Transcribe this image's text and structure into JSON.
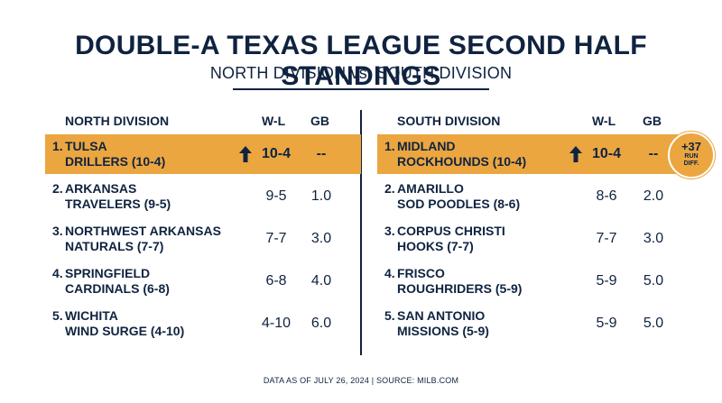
{
  "title": "DOUBLE-A TEXAS LEAGUE SECOND HALF STANDINGS",
  "subtitle": "NORTH DIVISION vs. SOUTH DIVISION",
  "accent_color": "#eba640",
  "text_color": "#0f2340",
  "north": {
    "header": {
      "division": "NORTH DIVISION",
      "wl": "W-L",
      "gb": "GB"
    },
    "rows": [
      {
        "rank": "1.",
        "line1": "TULSA",
        "line2": "DRILLERS (10-4)",
        "wl": "10-4",
        "gb": "--",
        "leader": true
      },
      {
        "rank": "2.",
        "line1": "ARKANSAS",
        "line2": "TRAVELERS (9-5)",
        "wl": "9-5",
        "gb": "1.0"
      },
      {
        "rank": "3.",
        "line1": "NORTHWEST ARKANSAS",
        "line2": "NATURALS (7-7)",
        "wl": "7-7",
        "gb": "3.0"
      },
      {
        "rank": "4.",
        "line1": "SPRINGFIELD",
        "line2": "CARDINALS (6-8)",
        "wl": "6-8",
        "gb": "4.0"
      },
      {
        "rank": "5.",
        "line1": "WICHITA",
        "line2": "WIND SURGE (4-10)",
        "wl": "4-10",
        "gb": "6.0"
      }
    ]
  },
  "south": {
    "header": {
      "division": "SOUTH DIVISION",
      "wl": "W-L",
      "gb": "GB"
    },
    "rows": [
      {
        "rank": "1.",
        "line1": "MIDLAND",
        "line2": "ROCKHOUNDS (10-4)",
        "wl": "10-4",
        "gb": "--",
        "leader": true
      },
      {
        "rank": "2.",
        "line1": "AMARILLO",
        "line2": "SOD POODLES (8-6)",
        "wl": "8-6",
        "gb": "2.0"
      },
      {
        "rank": "3.",
        "line1": "CORPUS CHRISTI",
        "line2": "HOOKS (7-7)",
        "wl": "7-7",
        "gb": "3.0"
      },
      {
        "rank": "4.",
        "line1": "FRISCO",
        "line2": "ROUGHRIDERS (5-9)",
        "wl": "5-9",
        "gb": "5.0"
      },
      {
        "rank": "5.",
        "line1": "SAN ANTONIO",
        "line2": "MISSIONS (5-9)",
        "wl": "5-9",
        "gb": "5.0"
      }
    ]
  },
  "badge": {
    "value": "+37",
    "label_line1": "RUN",
    "label_line2": "DIFF."
  },
  "icons": {
    "leader": "up-arrow-icon"
  },
  "footer": "DATA AS OF JULY 26, 2024 | SOURCE: MILB.COM"
}
